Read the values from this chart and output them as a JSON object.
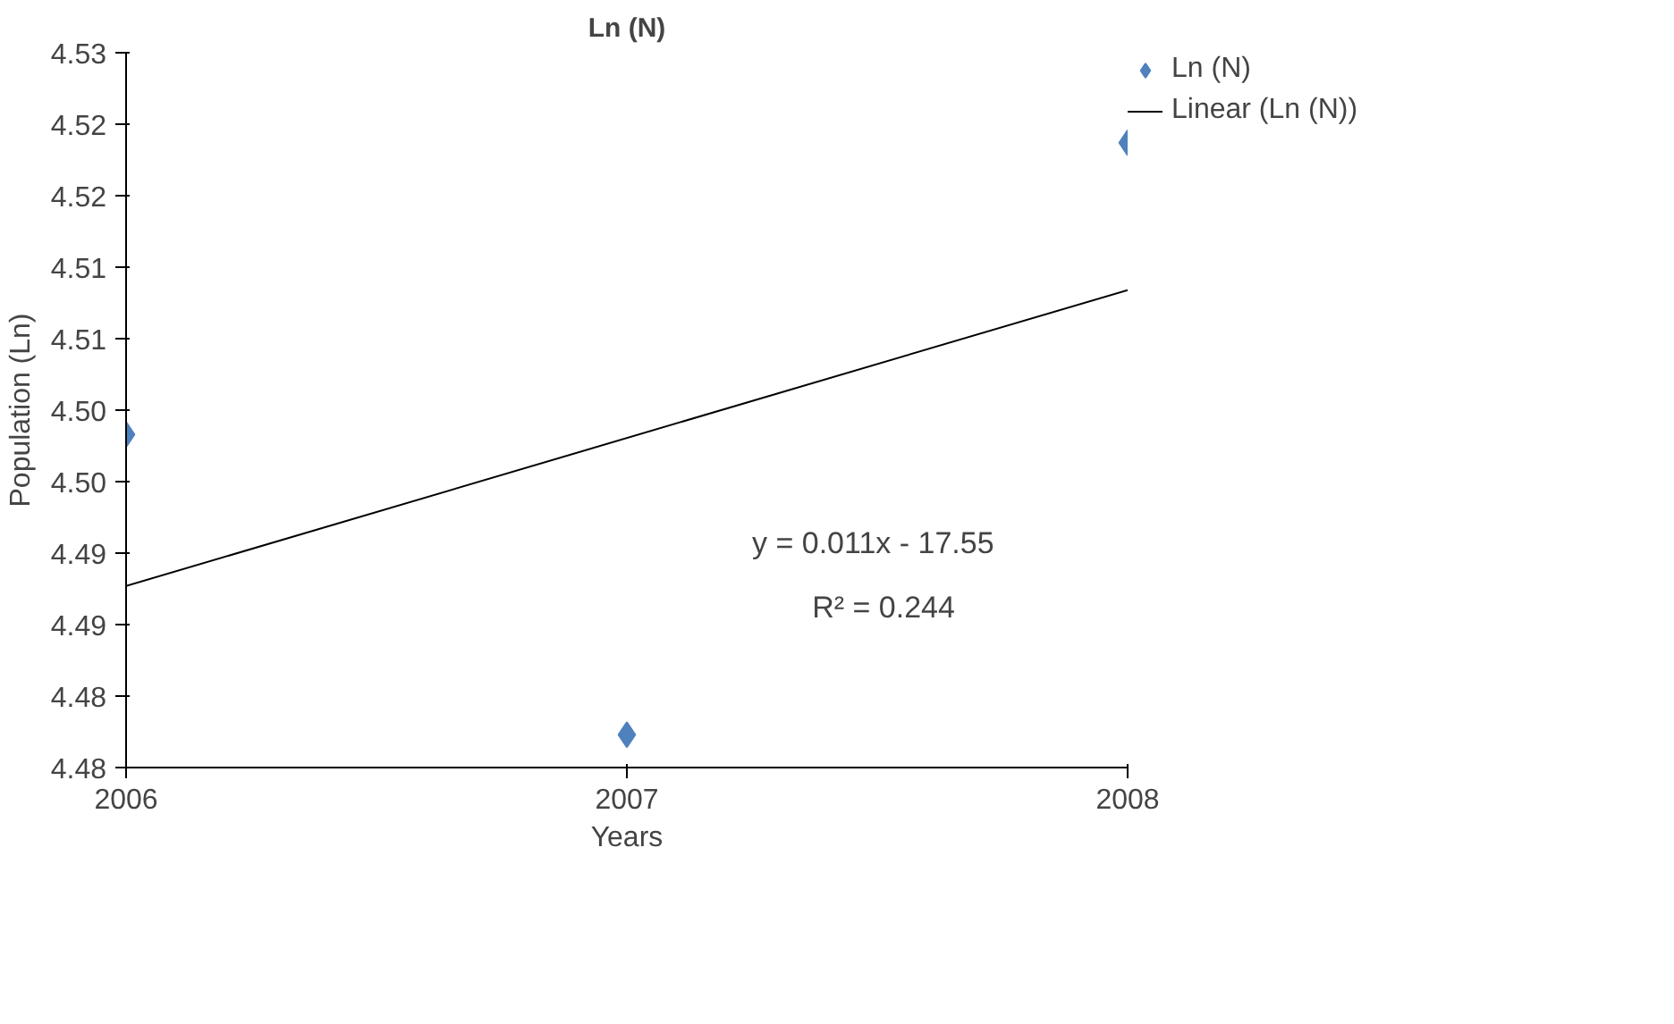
{
  "chart_data": {
    "type": "scatter",
    "title": "Ln (N)",
    "xlabel": "Years",
    "ylabel": "Population (Ln)",
    "x": [
      2006,
      2007,
      2008
    ],
    "series": [
      {
        "name": "Ln (N)",
        "color": "#4f81bd",
        "values": [
          4.4983,
          4.4773,
          4.5187
        ],
        "marker": "diamond"
      },
      {
        "name": "Linear (Ln (N))",
        "type": "line",
        "color": "#000000",
        "x": [
          2006,
          2008
        ],
        "values": [
          4.4877,
          4.5084
        ]
      }
    ],
    "xlim": [
      2006,
      2008
    ],
    "xticks": [
      2006,
      2007,
      2008
    ],
    "ylim": [
      4.475,
      4.525
    ],
    "yticks": [
      {
        "value": 4.475,
        "label": "4.48"
      },
      {
        "value": 4.48,
        "label": "4.48"
      },
      {
        "value": 4.485,
        "label": "4.49"
      },
      {
        "value": 4.49,
        "label": "4.49"
      },
      {
        "value": 4.495,
        "label": "4.50"
      },
      {
        "value": 4.5,
        "label": "4.50"
      },
      {
        "value": 4.505,
        "label": "4.51"
      },
      {
        "value": 4.51,
        "label": "4.51"
      },
      {
        "value": 4.515,
        "label": "4.52"
      },
      {
        "value": 4.52,
        "label": "4.52"
      },
      {
        "value": 4.525,
        "label": "4.53"
      }
    ],
    "annotations": [
      "y = 0.011x - 17.55",
      "R² = 0.244"
    ],
    "grid": false,
    "legend": "top right"
  }
}
